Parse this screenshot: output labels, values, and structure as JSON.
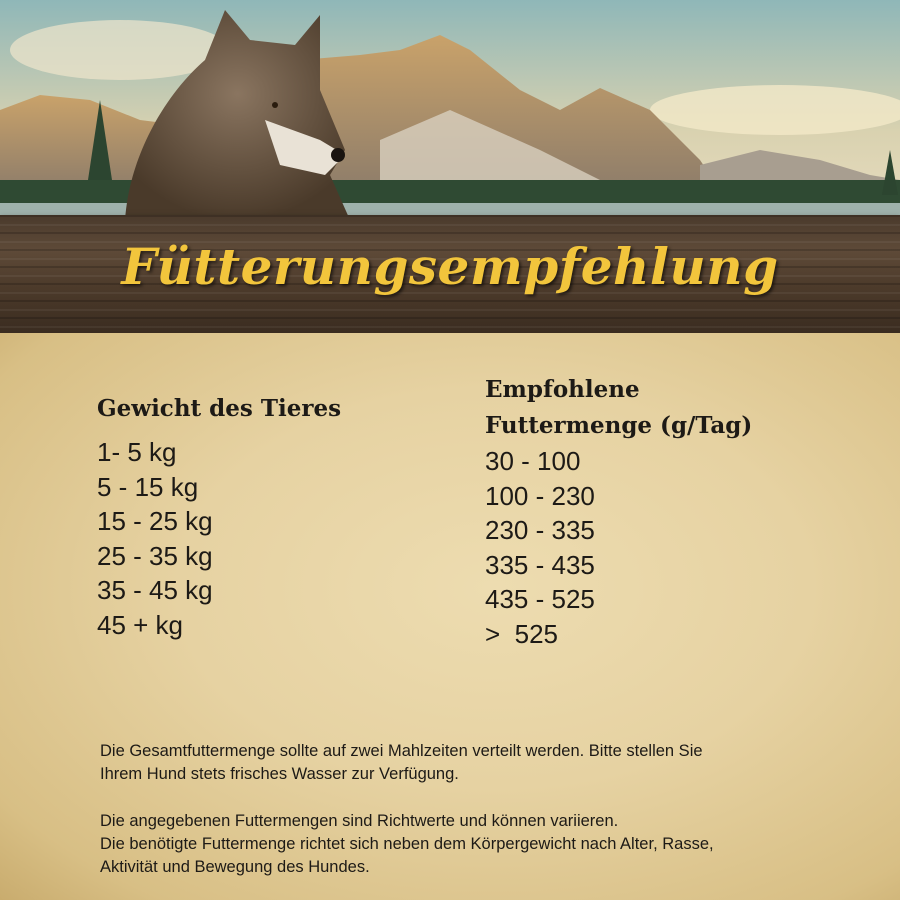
{
  "banner": {
    "title": "Fütterungsempfehlung"
  },
  "table": {
    "headers": {
      "weight": "Gewicht des Tieres",
      "amount_line1": "Empfohlene",
      "amount_line2": "Futtermenge (g/Tag)"
    },
    "rows": [
      {
        "weight": "1- 5 kg",
        "amount": "30 - 100"
      },
      {
        "weight": "5 - 15 kg",
        "amount": "100 - 230"
      },
      {
        "weight": "15 - 25 kg",
        "amount": "230 - 335"
      },
      {
        "weight": "25 - 35 kg",
        "amount": "335 - 435"
      },
      {
        "weight": "35 - 45 kg",
        "amount": "435 - 525"
      },
      {
        "weight": "45 + kg",
        "amount": ">  525"
      }
    ]
  },
  "notes": {
    "p1_line1": "Die Gesamtfuttermenge sollte auf zwei Mahlzeiten verteilt werden. Bitte stellen Sie",
    "p1_line2": "Ihrem Hund stets frisches Wasser zur Verfügung.",
    "p2_line1": "Die angegebenen Futtermengen sind Richtwerte und können variieren.",
    "p2_line2": "Die benötigte Futtermenge richtet sich neben dem Körpergewicht nach Alter, Rasse,",
    "p2_line3": "Aktivität und Bewegung des Hundes."
  },
  "colors": {
    "title": "#f2c53c",
    "wood": "#4d3b2b",
    "paper": "#e6d2a2"
  }
}
